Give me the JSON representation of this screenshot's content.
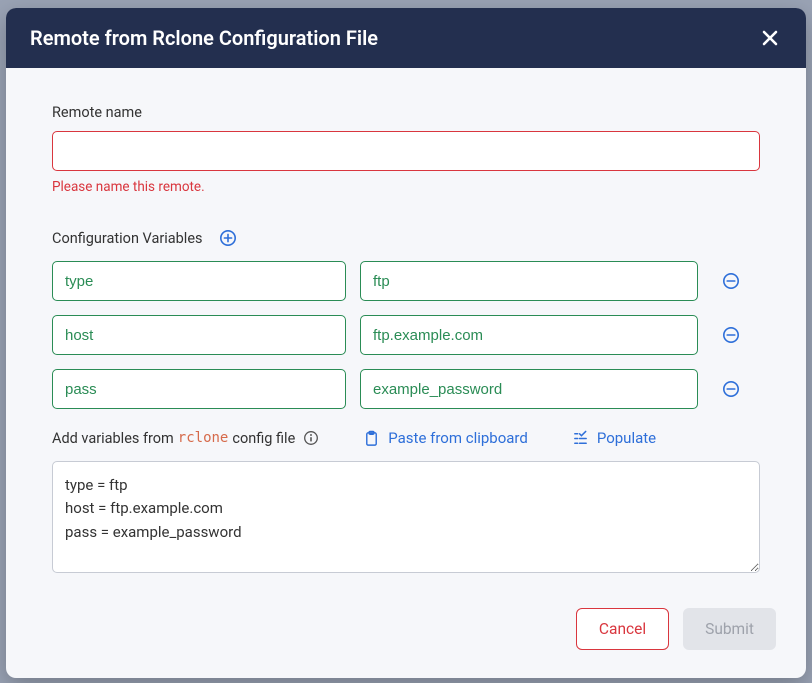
{
  "colors": {
    "header_bg": "#232f4f",
    "modal_bg": "#f6f7fa",
    "error": "#d9363e",
    "accent_blue": "#2e6fd9",
    "input_green": "#2a8c55",
    "code_orange": "#d66a4a",
    "disabled_bg": "#e2e4e9",
    "disabled_text": "#9ea2ab",
    "border_gray": "#c7cbd4"
  },
  "modal": {
    "title": "Remote from Rclone Configuration File"
  },
  "remote_name": {
    "label": "Remote name",
    "value": "",
    "error": "Please name this remote."
  },
  "config_vars": {
    "label": "Configuration Variables",
    "rows": [
      {
        "key": "type",
        "value": "ftp"
      },
      {
        "key": "host",
        "value": "ftp.example.com"
      },
      {
        "key": "pass",
        "value": "example_password"
      }
    ]
  },
  "helper": {
    "prefix": "Add variables from",
    "code": "rclone",
    "suffix": "config file",
    "paste_label": "Paste from clipboard",
    "populate_label": "Populate"
  },
  "textarea": {
    "value": "type = ftp\nhost = ftp.example.com\npass = example_password"
  },
  "footer": {
    "cancel": "Cancel",
    "submit": "Submit"
  }
}
